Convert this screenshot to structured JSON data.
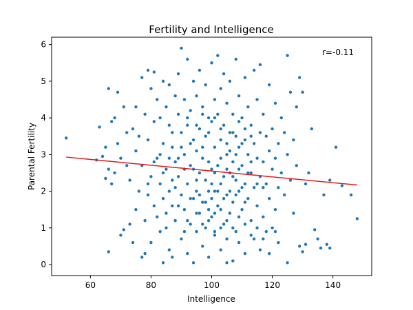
{
  "colors": {
    "points": "#1f77b4",
    "fit_line": "#e41a1c",
    "axes": "#000000"
  },
  "chart_data": {
    "type": "scatter",
    "title": "Fertility and Intelligence",
    "xlabel": "Intelligence",
    "ylabel": "Parental Fertility",
    "xlim": [
      47.2,
      152.8
    ],
    "ylim": [
      -0.3,
      6.2
    ],
    "xticks": [
      60,
      80,
      100,
      120,
      140
    ],
    "yticks": [
      0,
      1,
      2,
      3,
      4,
      5,
      6
    ],
    "grid": false,
    "annotation": "r=-0.11",
    "regression": {
      "x": [
        52,
        148
      ],
      "y": [
        2.93,
        2.17
      ]
    },
    "points_estimated": true,
    "points": [
      [
        52,
        3.45
      ],
      [
        62,
        2.85
      ],
      [
        63,
        3.75
      ],
      [
        64,
        2.95
      ],
      [
        65,
        3.2
      ],
      [
        65,
        2.35
      ],
      [
        66,
        4.8
      ],
      [
        66,
        2.6
      ],
      [
        66,
        0.35
      ],
      [
        67,
        2.2
      ],
      [
        67,
        3.9
      ],
      [
        68,
        4.0
      ],
      [
        68,
        2.5
      ],
      [
        69,
        4.7
      ],
      [
        69,
        3.3
      ],
      [
        70,
        0.8
      ],
      [
        70,
        2.9
      ],
      [
        71,
        0.95
      ],
      [
        71,
        4.3
      ],
      [
        72,
        2.7
      ],
      [
        72,
        3.6
      ],
      [
        73,
        1.1
      ],
      [
        73,
        2.3
      ],
      [
        74,
        3.7
      ],
      [
        74,
        0.6
      ],
      [
        75,
        1.5
      ],
      [
        75,
        3.1
      ],
      [
        75,
        4.3
      ],
      [
        76,
        2.0
      ],
      [
        76,
        3.5
      ],
      [
        77,
        0.2
      ],
      [
        77,
        2.7
      ],
      [
        77,
        5.1
      ],
      [
        78,
        0.3
      ],
      [
        78,
        1.2
      ],
      [
        78,
        4.1
      ],
      [
        79,
        5.3
      ],
      [
        79,
        1.9
      ],
      [
        79,
        3.4
      ],
      [
        80,
        4.8
      ],
      [
        80,
        2.4
      ],
      [
        80,
        0.6
      ],
      [
        81,
        5.25
      ],
      [
        81,
        3.9
      ],
      [
        81,
        1.6
      ],
      [
        82,
        4.5
      ],
      [
        82,
        2.9
      ],
      [
        82,
        1.3
      ],
      [
        83,
        4.0
      ],
      [
        83,
        2.2
      ],
      [
        83,
        0.9
      ],
      [
        84,
        5.0
      ],
      [
        84,
        3.3
      ],
      [
        84,
        1.8
      ],
      [
        84,
        0.05
      ],
      [
        85,
        4.3
      ],
      [
        85,
        2.6
      ],
      [
        85,
        1.0
      ],
      [
        86,
        3.8
      ],
      [
        86,
        2.0
      ],
      [
        86,
        0.4
      ],
      [
        86,
        4.9
      ],
      [
        87,
        3.2
      ],
      [
        87,
        1.6
      ],
      [
        87,
        0.2
      ],
      [
        88,
        4.6
      ],
      [
        88,
        2.8
      ],
      [
        88,
        1.2
      ],
      [
        89,
        4.1
      ],
      [
        89,
        2.4
      ],
      [
        89,
        5.2
      ],
      [
        90,
        3.6
      ],
      [
        90,
        1.9
      ],
      [
        90,
        0.7
      ],
      [
        90,
        5.9
      ],
      [
        91,
        4.5
      ],
      [
        91,
        3.0
      ],
      [
        91,
        1.5
      ],
      [
        92,
        5.6
      ],
      [
        92,
        3.8
      ],
      [
        92,
        2.2
      ],
      [
        92,
        0.3
      ],
      [
        93,
        4.2
      ],
      [
        93,
        2.7
      ],
      [
        93,
        1.1
      ],
      [
        94,
        5.0
      ],
      [
        94,
        3.4
      ],
      [
        94,
        1.8
      ],
      [
        94,
        0.05
      ],
      [
        95,
        4.6
      ],
      [
        95,
        3.1
      ],
      [
        95,
        2.0
      ],
      [
        95,
        0.9
      ],
      [
        96,
        5.3
      ],
      [
        96,
        3.7
      ],
      [
        96,
        2.5
      ],
      [
        96,
        1.4
      ],
      [
        97,
        4.3
      ],
      [
        97,
        2.9
      ],
      [
        97,
        1.7
      ],
      [
        97,
        0.5
      ],
      [
        98,
        4.9
      ],
      [
        98,
        3.5
      ],
      [
        98,
        2.3
      ],
      [
        98,
        1.0
      ],
      [
        99,
        4.0
      ],
      [
        99,
        2.8
      ],
      [
        99,
        1.5
      ],
      [
        99,
        0.2
      ],
      [
        100,
        5.5
      ],
      [
        100,
        3.9
      ],
      [
        100,
        2.6
      ],
      [
        100,
        1.3
      ],
      [
        101,
        4.5
      ],
      [
        101,
        3.2
      ],
      [
        101,
        2.0
      ],
      [
        101,
        0.8
      ],
      [
        102,
        5.7
      ],
      [
        102,
        4.1
      ],
      [
        102,
        2.7
      ],
      [
        102,
        1.6
      ],
      [
        103,
        4.8
      ],
      [
        103,
        3.4
      ],
      [
        103,
        2.2
      ],
      [
        103,
        0.4
      ],
      [
        104,
        5.2
      ],
      [
        104,
        3.8
      ],
      [
        104,
        2.4
      ],
      [
        104,
        1.1
      ],
      [
        105,
        4.4
      ],
      [
        105,
        3.0
      ],
      [
        105,
        1.9
      ],
      [
        105,
        0.05
      ],
      [
        106,
        5.0
      ],
      [
        106,
        3.6
      ],
      [
        106,
        2.5
      ],
      [
        106,
        1.4
      ],
      [
        107,
        4.1
      ],
      [
        107,
        2.8
      ],
      [
        107,
        1.7
      ],
      [
        107,
        0.1
      ],
      [
        108,
        5.6
      ],
      [
        108,
        3.5
      ],
      [
        108,
        2.3
      ],
      [
        108,
        0.9
      ],
      [
        109,
        4.6
      ],
      [
        109,
        3.2
      ],
      [
        109,
        2.0
      ],
      [
        109,
        0.6
      ],
      [
        110,
        4.0
      ],
      [
        110,
        2.7
      ],
      [
        110,
        1.5
      ],
      [
        111,
        5.1
      ],
      [
        111,
        3.4
      ],
      [
        111,
        2.2
      ],
      [
        111,
        0.3
      ],
      [
        112,
        4.3
      ],
      [
        112,
        3.0
      ],
      [
        112,
        1.8
      ],
      [
        113,
        3.8
      ],
      [
        113,
        2.5
      ],
      [
        113,
        1.2
      ],
      [
        114,
        5.3
      ],
      [
        114,
        3.3
      ],
      [
        114,
        2.1
      ],
      [
        114,
        0.7
      ],
      [
        115,
        4.5
      ],
      [
        115,
        2.9
      ],
      [
        115,
        1.6
      ],
      [
        116,
        5.45
      ],
      [
        116,
        3.6
      ],
      [
        116,
        2.4
      ],
      [
        116,
        0.4
      ],
      [
        117,
        4.1
      ],
      [
        117,
        2.8
      ],
      [
        117,
        1.3
      ],
      [
        118,
        3.5
      ],
      [
        118,
        2.2
      ],
      [
        118,
        0.9
      ],
      [
        119,
        4.9
      ],
      [
        119,
        3.1
      ],
      [
        119,
        1.8
      ],
      [
        120,
        3.7
      ],
      [
        120,
        2.6
      ],
      [
        120,
        1.0
      ],
      [
        121,
        4.4
      ],
      [
        121,
        2.9
      ],
      [
        121,
        1.5
      ],
      [
        122,
        3.3
      ],
      [
        122,
        2.1
      ],
      [
        122,
        0.6
      ],
      [
        123,
        4.0
      ],
      [
        123,
        2.5
      ],
      [
        124,
        3.6
      ],
      [
        124,
        1.9
      ],
      [
        125,
        5.7
      ],
      [
        125,
        3.0
      ],
      [
        125,
        0.05
      ],
      [
        126,
        4.7
      ],
      [
        126,
        2.3
      ],
      [
        127,
        3.4
      ],
      [
        127,
        1.4
      ],
      [
        128,
        2.7
      ],
      [
        128,
        4.3
      ],
      [
        129,
        5.1
      ],
      [
        129,
        0.5
      ],
      [
        130,
        4.7
      ],
      [
        130,
        0.35
      ],
      [
        131,
        2.2
      ],
      [
        131,
        0.55
      ],
      [
        132,
        2.5
      ],
      [
        133,
        3.7
      ],
      [
        134,
        0.95
      ],
      [
        135,
        0.7
      ],
      [
        136,
        0.45
      ],
      [
        137,
        1.9
      ],
      [
        138,
        0.55
      ],
      [
        139,
        2.3
      ],
      [
        139,
        0.45
      ],
      [
        141,
        3.2
      ],
      [
        143,
        2.15
      ],
      [
        146,
        1.9
      ],
      [
        148,
        1.25
      ],
      [
        88,
        2.1
      ],
      [
        91,
        2.6
      ],
      [
        93,
        3.3
      ],
      [
        95,
        2.3
      ],
      [
        97,
        3.2
      ],
      [
        99,
        2.0
      ],
      [
        100,
        2.2
      ],
      [
        101,
        2.5
      ],
      [
        102,
        2.0
      ],
      [
        103,
        2.9
      ],
      [
        104,
        1.8
      ],
      [
        105,
        2.6
      ],
      [
        106,
        2.0
      ],
      [
        107,
        2.4
      ],
      [
        108,
        1.9
      ],
      [
        109,
        2.6
      ],
      [
        110,
        2.1
      ],
      [
        111,
        1.7
      ],
      [
        112,
        2.5
      ],
      [
        84,
        2.5
      ],
      [
        86,
        2.9
      ],
      [
        89,
        1.6
      ],
      [
        92,
        1.2
      ],
      [
        94,
        2.6
      ],
      [
        96,
        1.9
      ],
      [
        98,
        1.7
      ],
      [
        100,
        1.8
      ],
      [
        101,
        1.4
      ],
      [
        103,
        1.5
      ],
      [
        105,
        1.2
      ],
      [
        106,
        3.1
      ],
      [
        108,
        3.0
      ],
      [
        110,
        3.3
      ],
      [
        113,
        2.8
      ],
      [
        115,
        2.2
      ],
      [
        117,
        2.1
      ],
      [
        87,
        3.6
      ],
      [
        90,
        3.2
      ],
      [
        92,
        4.0
      ],
      [
        95,
        3.8
      ],
      [
        97,
        4.1
      ],
      [
        99,
        3.6
      ],
      [
        101,
        4.0
      ],
      [
        103,
        3.7
      ],
      [
        105,
        3.3
      ],
      [
        107,
        3.6
      ],
      [
        109,
        3.9
      ],
      [
        111,
        3.7
      ],
      [
        113,
        3.5
      ],
      [
        79,
        2.2
      ],
      [
        81,
        2.8
      ],
      [
        83,
        3.0
      ],
      [
        85,
        1.4
      ],
      [
        87,
        2.3
      ],
      [
        89,
        2.9
      ],
      [
        91,
        0.9
      ],
      [
        93,
        1.8
      ],
      [
        95,
        1.4
      ],
      [
        97,
        1.1
      ],
      [
        99,
        1.2
      ],
      [
        101,
        0.9
      ],
      [
        103,
        1.0
      ],
      [
        105,
        0.7
      ],
      [
        107,
        1.0
      ],
      [
        109,
        1.3
      ],
      [
        111,
        1.1
      ],
      [
        113,
        0.8
      ],
      [
        115,
        1.0
      ],
      [
        117,
        0.7
      ],
      [
        119,
        0.3
      ],
      [
        121,
        0.9
      ]
    ]
  }
}
